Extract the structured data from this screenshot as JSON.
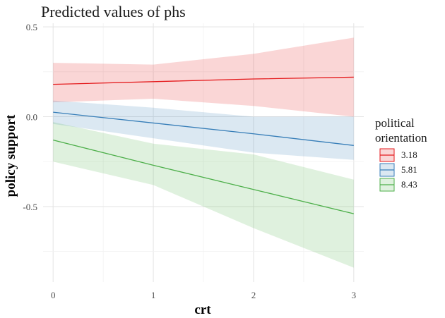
{
  "chart_data": {
    "type": "line",
    "title": "Predicted values of phs",
    "xlabel": "crt",
    "ylabel": "policy support",
    "x": [
      0,
      1,
      2,
      3
    ],
    "xlim": [
      -0.1,
      3.1
    ],
    "ylim": [
      -0.92,
      0.52
    ],
    "x_ticks": [
      0,
      1,
      2,
      3
    ],
    "x_tick_labels": [
      "0",
      "1",
      "2",
      "3"
    ],
    "y_ticks": [
      0.5,
      0.0,
      -0.5
    ],
    "y_tick_labels": [
      "0.5",
      "0.0",
      "-0.5"
    ],
    "grid": true,
    "legend": {
      "title_lines": [
        "political",
        "orientation"
      ],
      "position": "right"
    },
    "series": [
      {
        "name": "3.18",
        "color": "#e41a1c",
        "values": [
          0.18,
          0.195,
          0.21,
          0.22
        ],
        "lower": [
          0.08,
          0.1,
          0.06,
          0.0
        ],
        "upper": [
          0.3,
          0.29,
          0.35,
          0.44
        ]
      },
      {
        "name": "5.81",
        "color": "#377eb8",
        "values": [
          0.025,
          -0.035,
          -0.095,
          -0.16
        ],
        "lower": [
          -0.04,
          -0.12,
          -0.2,
          -0.24
        ],
        "upper": [
          0.09,
          0.05,
          0.0,
          0.0
        ]
      },
      {
        "name": "8.43",
        "color": "#4daf4a",
        "values": [
          -0.13,
          -0.27,
          -0.405,
          -0.54
        ],
        "lower": [
          -0.25,
          -0.38,
          -0.62,
          -0.84
        ],
        "upper": [
          -0.03,
          -0.15,
          -0.21,
          -0.35
        ]
      }
    ]
  }
}
